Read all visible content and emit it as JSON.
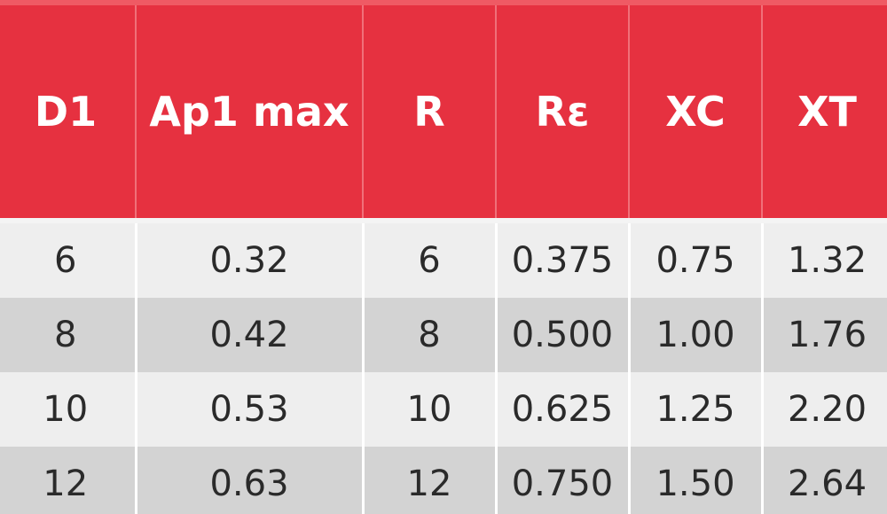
{
  "table": {
    "headers": [
      "D1",
      "Ap1 max",
      "R",
      "Rε",
      "XC",
      "XT"
    ],
    "rows": [
      [
        "6",
        "0.32",
        "6",
        "0.375",
        "0.75",
        "1.32"
      ],
      [
        "8",
        "0.42",
        "8",
        "0.500",
        "1.00",
        "1.76"
      ],
      [
        "10",
        "0.53",
        "10",
        "0.625",
        "1.25",
        "2.20"
      ],
      [
        "12",
        "0.63",
        "12",
        "0.750",
        "1.50",
        "2.64"
      ]
    ]
  },
  "colors": {
    "header_bg": "#e63140",
    "header_text": "#ffffff",
    "row_light": "#eeeeee",
    "row_dark": "#d3d3d3"
  }
}
